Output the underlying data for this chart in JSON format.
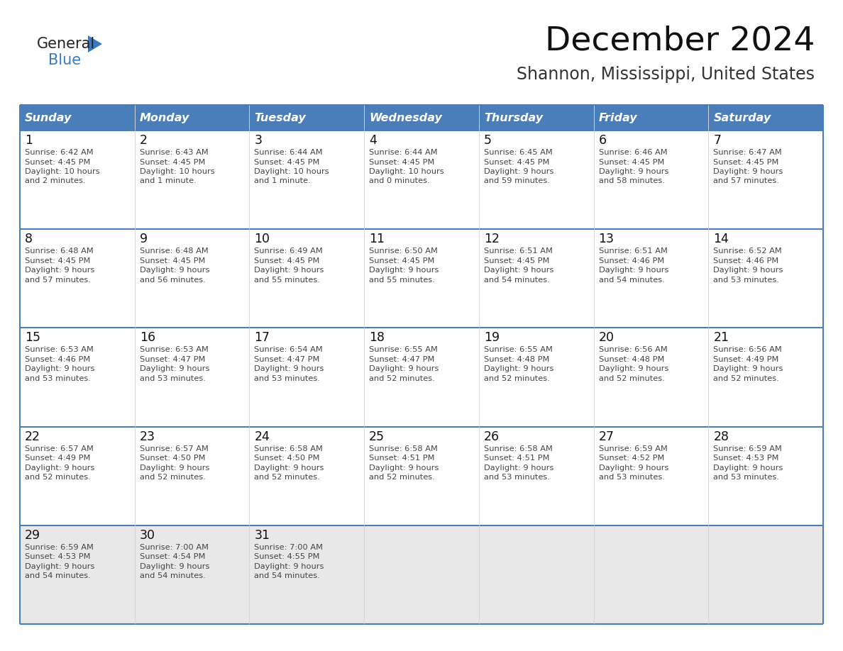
{
  "title": "December 2024",
  "subtitle": "Shannon, Mississippi, United States",
  "days_of_week": [
    "Sunday",
    "Monday",
    "Tuesday",
    "Wednesday",
    "Thursday",
    "Friday",
    "Saturday"
  ],
  "header_bg": "#4a7eba",
  "header_text": "#ffffff",
  "row_separator_color": "#4a7eba",
  "cell_bg": "#ffffff",
  "last_row_bg": "#e8e8e8",
  "day_number_color": "#111111",
  "cell_text_color": "#444444",
  "title_color": "#111111",
  "subtitle_color": "#333333",
  "logo_color_general": "#222222",
  "logo_color_blue": "#3a7bbf",
  "calendar_data": [
    [
      {
        "day": 1,
        "sunrise": "6:42 AM",
        "sunset": "4:45 PM",
        "daylight": "10 hours and 2 minutes."
      },
      {
        "day": 2,
        "sunrise": "6:43 AM",
        "sunset": "4:45 PM",
        "daylight": "10 hours and 1 minute."
      },
      {
        "day": 3,
        "sunrise": "6:44 AM",
        "sunset": "4:45 PM",
        "daylight": "10 hours and 1 minute."
      },
      {
        "day": 4,
        "sunrise": "6:44 AM",
        "sunset": "4:45 PM",
        "daylight": "10 hours and 0 minutes."
      },
      {
        "day": 5,
        "sunrise": "6:45 AM",
        "sunset": "4:45 PM",
        "daylight": "9 hours and 59 minutes."
      },
      {
        "day": 6,
        "sunrise": "6:46 AM",
        "sunset": "4:45 PM",
        "daylight": "9 hours and 58 minutes."
      },
      {
        "day": 7,
        "sunrise": "6:47 AM",
        "sunset": "4:45 PM",
        "daylight": "9 hours and 57 minutes."
      }
    ],
    [
      {
        "day": 8,
        "sunrise": "6:48 AM",
        "sunset": "4:45 PM",
        "daylight": "9 hours and 57 minutes."
      },
      {
        "day": 9,
        "sunrise": "6:48 AM",
        "sunset": "4:45 PM",
        "daylight": "9 hours and 56 minutes."
      },
      {
        "day": 10,
        "sunrise": "6:49 AM",
        "sunset": "4:45 PM",
        "daylight": "9 hours and 55 minutes."
      },
      {
        "day": 11,
        "sunrise": "6:50 AM",
        "sunset": "4:45 PM",
        "daylight": "9 hours and 55 minutes."
      },
      {
        "day": 12,
        "sunrise": "6:51 AM",
        "sunset": "4:45 PM",
        "daylight": "9 hours and 54 minutes."
      },
      {
        "day": 13,
        "sunrise": "6:51 AM",
        "sunset": "4:46 PM",
        "daylight": "9 hours and 54 minutes."
      },
      {
        "day": 14,
        "sunrise": "6:52 AM",
        "sunset": "4:46 PM",
        "daylight": "9 hours and 53 minutes."
      }
    ],
    [
      {
        "day": 15,
        "sunrise": "6:53 AM",
        "sunset": "4:46 PM",
        "daylight": "9 hours and 53 minutes."
      },
      {
        "day": 16,
        "sunrise": "6:53 AM",
        "sunset": "4:47 PM",
        "daylight": "9 hours and 53 minutes."
      },
      {
        "day": 17,
        "sunrise": "6:54 AM",
        "sunset": "4:47 PM",
        "daylight": "9 hours and 53 minutes."
      },
      {
        "day": 18,
        "sunrise": "6:55 AM",
        "sunset": "4:47 PM",
        "daylight": "9 hours and 52 minutes."
      },
      {
        "day": 19,
        "sunrise": "6:55 AM",
        "sunset": "4:48 PM",
        "daylight": "9 hours and 52 minutes."
      },
      {
        "day": 20,
        "sunrise": "6:56 AM",
        "sunset": "4:48 PM",
        "daylight": "9 hours and 52 minutes."
      },
      {
        "day": 21,
        "sunrise": "6:56 AM",
        "sunset": "4:49 PM",
        "daylight": "9 hours and 52 minutes."
      }
    ],
    [
      {
        "day": 22,
        "sunrise": "6:57 AM",
        "sunset": "4:49 PM",
        "daylight": "9 hours and 52 minutes."
      },
      {
        "day": 23,
        "sunrise": "6:57 AM",
        "sunset": "4:50 PM",
        "daylight": "9 hours and 52 minutes."
      },
      {
        "day": 24,
        "sunrise": "6:58 AM",
        "sunset": "4:50 PM",
        "daylight": "9 hours and 52 minutes."
      },
      {
        "day": 25,
        "sunrise": "6:58 AM",
        "sunset": "4:51 PM",
        "daylight": "9 hours and 52 minutes."
      },
      {
        "day": 26,
        "sunrise": "6:58 AM",
        "sunset": "4:51 PM",
        "daylight": "9 hours and 53 minutes."
      },
      {
        "day": 27,
        "sunrise": "6:59 AM",
        "sunset": "4:52 PM",
        "daylight": "9 hours and 53 minutes."
      },
      {
        "day": 28,
        "sunrise": "6:59 AM",
        "sunset": "4:53 PM",
        "daylight": "9 hours and 53 minutes."
      }
    ],
    [
      {
        "day": 29,
        "sunrise": "6:59 AM",
        "sunset": "4:53 PM",
        "daylight": "9 hours and 54 minutes."
      },
      {
        "day": 30,
        "sunrise": "7:00 AM",
        "sunset": "4:54 PM",
        "daylight": "9 hours and 54 minutes."
      },
      {
        "day": 31,
        "sunrise": "7:00 AM",
        "sunset": "4:55 PM",
        "daylight": "9 hours and 54 minutes."
      },
      null,
      null,
      null,
      null
    ]
  ]
}
